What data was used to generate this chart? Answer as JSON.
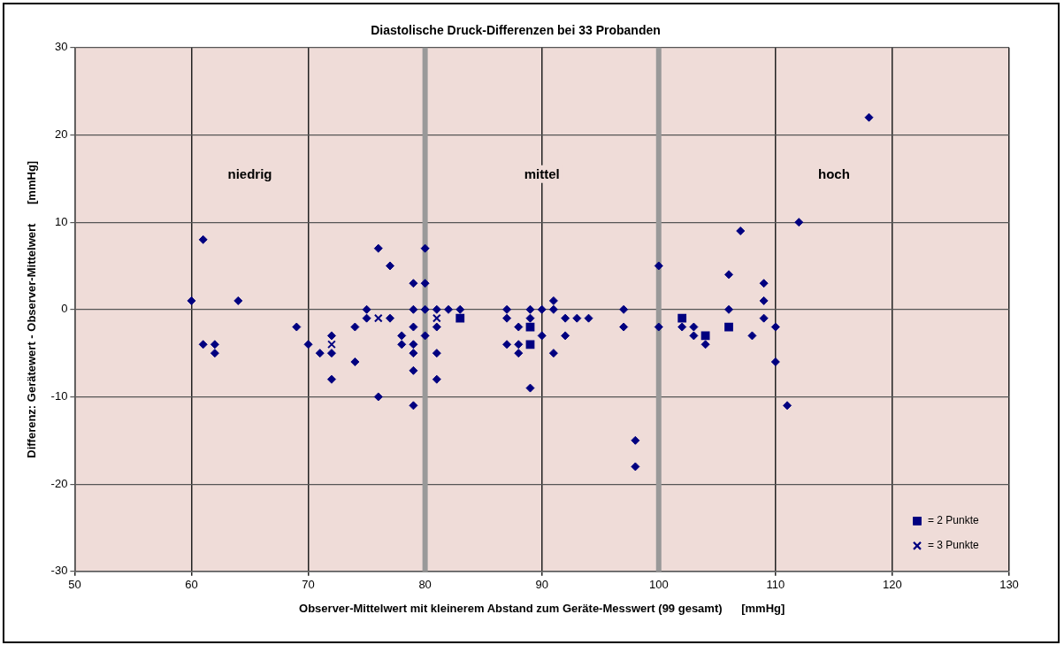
{
  "chart_data": {
    "type": "scatter",
    "title": "Diastolische Druck-Differenzen bei 33 Probanden",
    "xlabel": "Observer-Mittelwert mit kleinerem Abstand zum Geräte-Messwert (99 gesamt)      [mmHg]",
    "ylabel": "Differenz: Gerätewert - Observer-Mittelwert      [mmHg]",
    "xlim": [
      50,
      130
    ],
    "xticks": [
      50,
      60,
      70,
      80,
      90,
      100,
      110,
      120,
      130
    ],
    "ylim": [
      -30,
      30
    ],
    "yticks": [
      -30,
      -20,
      -10,
      0,
      10,
      20,
      30
    ],
    "grid": true,
    "legend": "bottom right",
    "bands": [
      {
        "axis": "x",
        "from": 50,
        "to": 80,
        "label": "niedrig",
        "color": "#efdcd8"
      },
      {
        "axis": "x",
        "from": 80,
        "to": 100,
        "label": "mittel",
        "color": "#efdcd8"
      },
      {
        "axis": "x",
        "from": 100,
        "to": 130,
        "label": "hoch",
        "color": "#efdcd8"
      }
    ],
    "series": [
      {
        "color": "#000080",
        "marker": "diamond",
        "x": [
          60,
          61,
          61,
          62,
          62,
          64,
          69,
          70,
          71,
          72,
          72,
          72,
          74,
          74,
          75,
          75,
          76,
          76,
          77,
          77,
          78,
          78,
          79,
          79,
          79,
          79,
          79,
          79,
          79,
          80,
          80,
          80,
          80,
          81,
          81,
          81,
          81,
          82,
          83,
          87,
          87,
          87,
          88,
          88,
          88,
          89,
          89,
          89,
          90,
          90,
          91,
          91,
          91,
          92,
          92,
          93,
          94,
          97,
          97,
          98,
          98,
          100,
          100,
          102,
          103,
          103,
          104,
          106,
          106,
          107,
          108,
          109,
          109,
          109,
          110,
          110,
          111,
          112,
          118
        ],
        "values": [
          1,
          8,
          -4,
          -4,
          -5,
          1,
          -2,
          -4,
          -5,
          -3,
          -5,
          -8,
          -2,
          -6,
          0,
          -1,
          7,
          -10,
          5,
          -1,
          -3,
          -4,
          3,
          0,
          -2,
          -4,
          -5,
          -7,
          -11,
          7,
          3,
          0,
          -3,
          0,
          -2,
          -5,
          -8,
          0,
          0,
          0,
          -1,
          -4,
          -2,
          -4,
          -5,
          0,
          -1,
          -9,
          0,
          -3,
          1,
          0,
          -5,
          -1,
          -3,
          -1,
          -1,
          0,
          -2,
          -15,
          -18,
          5,
          -2,
          -2,
          -2,
          -3,
          -4,
          4,
          0,
          9,
          -3,
          3,
          1,
          -1,
          -2,
          -6,
          -11,
          10,
          22
        ]
      },
      {
        "name": "= 2 Punkte",
        "color": "#000080",
        "marker": "square",
        "x": [
          83,
          89,
          89,
          102,
          104,
          106
        ],
        "values": [
          -1,
          -2,
          -4,
          -1,
          -3,
          -2
        ]
      },
      {
        "name": "= 3 Punkte",
        "color": "#000080",
        "marker": "cross",
        "x": [
          72,
          76,
          81
        ],
        "values": [
          -4,
          -1,
          -1
        ]
      }
    ]
  }
}
